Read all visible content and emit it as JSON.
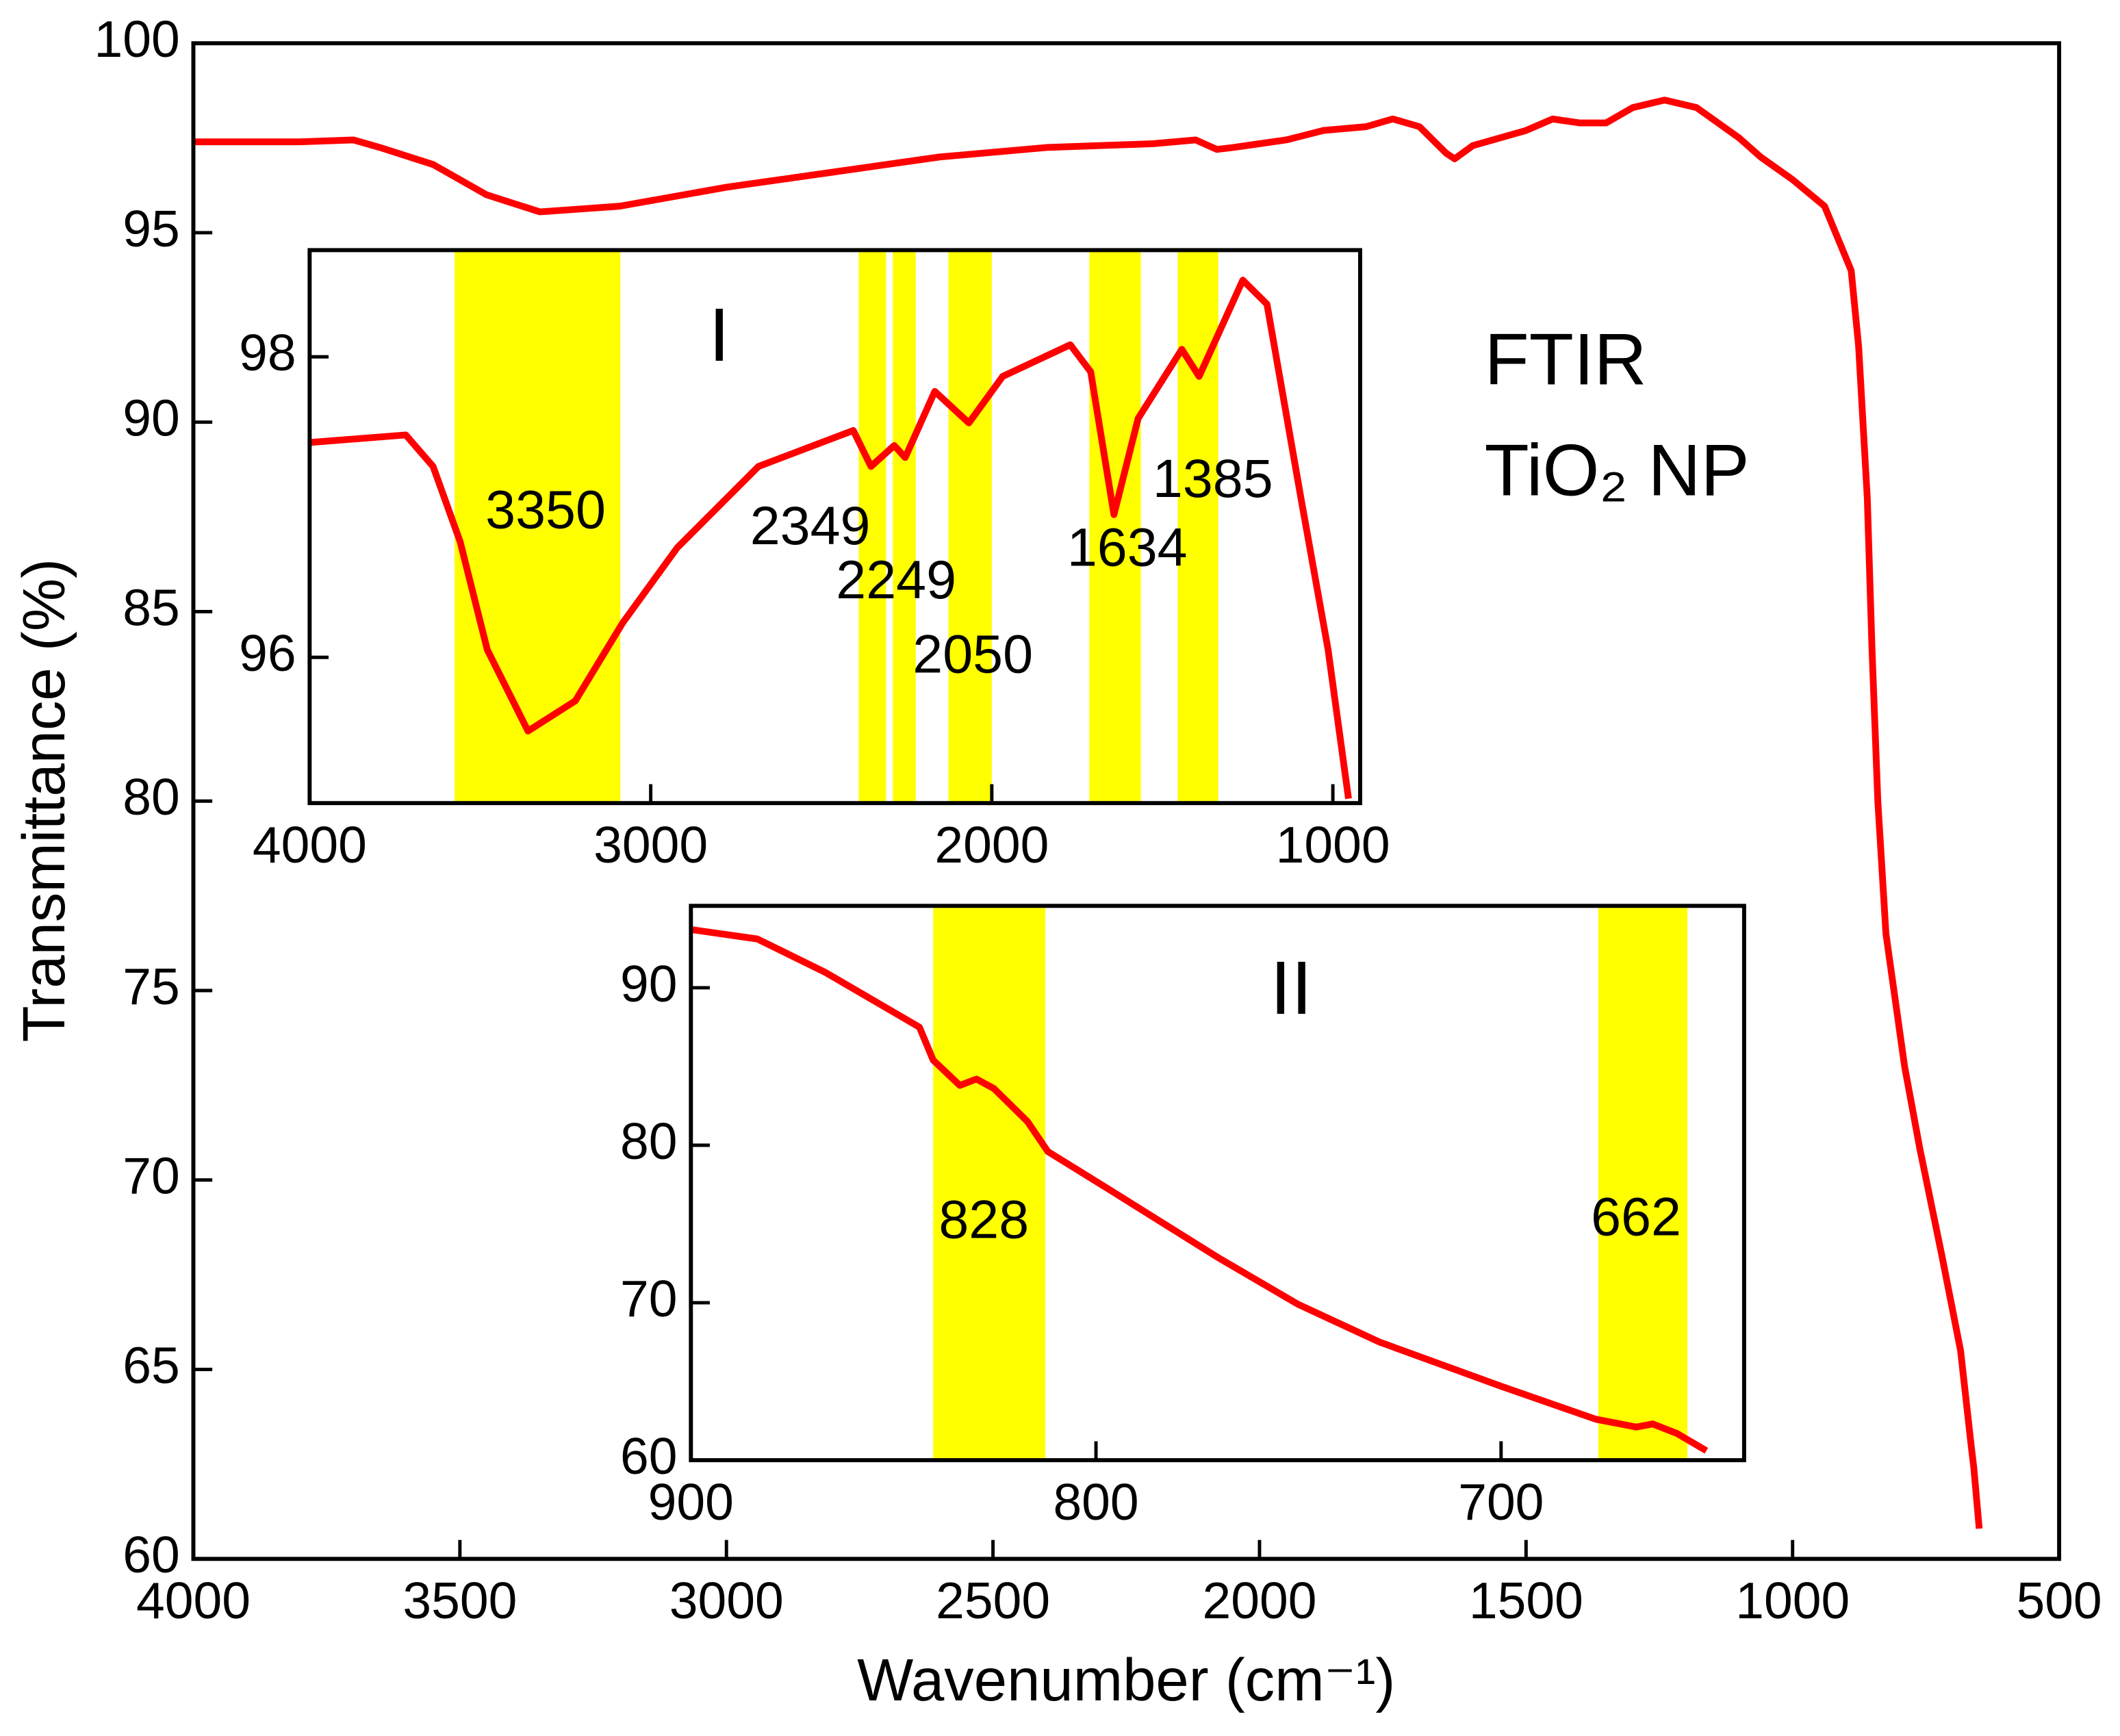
{
  "chart_data": [
    {
      "type": "line",
      "x_label": "Wavenumber (cm⁻¹)",
      "y_label": "Transmittance (%)",
      "annotations": [
        "FTIR",
        "TiO₂ NP"
      ],
      "xlim": [
        4000,
        500
      ],
      "ylim": [
        60,
        100
      ],
      "xticks": [
        4000,
        3500,
        3000,
        2500,
        2000,
        1500,
        1000,
        500
      ],
      "yticks": [
        60,
        65,
        70,
        75,
        80,
        85,
        90,
        95,
        100
      ],
      "color": "#ff0000",
      "x": [
        4000,
        3800,
        3700,
        3650,
        3550,
        3450,
        3350,
        3200,
        3000,
        2800,
        2600,
        2400,
        2200,
        2120,
        2080,
        2050,
        2000,
        1950,
        1880,
        1800,
        1750,
        1700,
        1650,
        1634,
        1600,
        1500,
        1450,
        1400,
        1350,
        1300,
        1240,
        1180,
        1100,
        1060,
        1000,
        940,
        890,
        876,
        860,
        851,
        840,
        825,
        790,
        761,
        720,
        685,
        665,
        660,
        650
      ],
      "values": [
        97.4,
        97.4,
        97.45,
        97.25,
        96.8,
        96.0,
        95.55,
        95.7,
        96.2,
        96.6,
        97.0,
        97.25,
        97.35,
        97.45,
        97.2,
        97.25,
        97.35,
        97.45,
        97.7,
        97.8,
        98.0,
        97.8,
        97.1,
        96.95,
        97.3,
        97.7,
        98.0,
        97.9,
        97.9,
        98.3,
        98.5,
        98.3,
        97.5,
        97.0,
        96.4,
        95.7,
        94.0,
        92.0,
        88,
        84.0,
        80,
        76.5,
        73,
        70.8,
        68,
        65.5,
        63.0,
        62.4,
        60.8
      ]
    },
    {
      "type": "line",
      "label": "I",
      "xlim": [
        4000,
        920
      ],
      "ylim": [
        95.03,
        98.71
      ],
      "xticks": [
        4000,
        3000,
        2000,
        1000
      ],
      "yticks": [
        96,
        98
      ],
      "color": "#ff0000",
      "band_color": "#ffff00",
      "bands": [
        {
          "from": 3575,
          "to": 3089,
          "label": "3350"
        },
        {
          "from": 2390,
          "to": 2310,
          "label": "2349"
        },
        {
          "from": 2290,
          "to": 2223,
          "label": "2249"
        },
        {
          "from": 2127,
          "to": 2000,
          "label": "2050"
        },
        {
          "from": 1714,
          "to": 1563,
          "label": "1634"
        },
        {
          "from": 1455,
          "to": 1336,
          "label": "1385"
        }
      ],
      "x": [
        4000,
        3718,
        3638,
        3559,
        3479,
        3360,
        3221,
        3082,
        2922,
        2684,
        2406,
        2354,
        2286,
        2254,
        2167,
        2067,
        1968,
        1770,
        1710,
        1642,
        1571,
        1443,
        1392,
        1264,
        1193,
        1093,
        1014,
        954
      ],
      "values": [
        97.43,
        97.48,
        97.27,
        96.77,
        96.05,
        95.51,
        95.71,
        96.23,
        96.73,
        97.27,
        97.51,
        97.27,
        97.41,
        97.33,
        97.77,
        97.56,
        97.87,
        98.08,
        97.9,
        96.95,
        97.59,
        98.05,
        97.87,
        98.51,
        98.35,
        97.05,
        96.05,
        95.06
      ]
    },
    {
      "type": "line",
      "label": "II",
      "xlim": [
        900,
        640
      ],
      "ylim": [
        60,
        95.2
      ],
      "xticks": [
        900,
        800,
        700
      ],
      "yticks": [
        60,
        70,
        80,
        90
      ],
      "color": "#ff0000",
      "band_color": "#ffff00",
      "bands": [
        {
          "from": 840.2,
          "to": 812.5,
          "label": "828"
        },
        {
          "from": 676,
          "to": 654,
          "label": "662"
        }
      ],
      "x": [
        900,
        883.6,
        867,
        843.6,
        840.2,
        833.6,
        829.5,
        825.2,
        816.9,
        811.9,
        796.8,
        770.1,
        750.1,
        730,
        700,
        676.6,
        666.6,
        662.6,
        656.6,
        649.3
      ],
      "values": [
        93.7,
        93.1,
        91.0,
        87.5,
        85.4,
        83.8,
        84.2,
        83.6,
        81.5,
        79.6,
        77.2,
        72.9,
        69.9,
        67.5,
        64.7,
        62.6,
        62.1,
        62.3,
        61.7,
        60.6
      ]
    }
  ]
}
